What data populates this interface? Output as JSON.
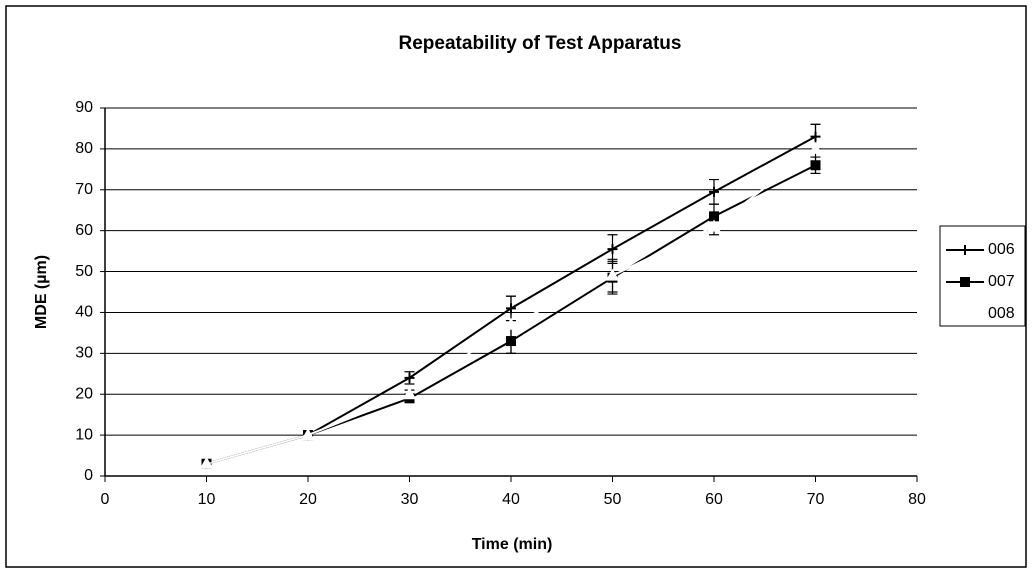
{
  "chart_data": {
    "type": "line",
    "title": "Repeatability of Test Apparatus",
    "x_label": "Time (min)",
    "y_label": "MDE (µm)",
    "x": [
      10,
      20,
      30,
      40,
      50,
      60,
      70
    ],
    "series": [
      {
        "name": "006",
        "color": "#000000",
        "marker": "plus",
        "values": [
          3,
          10,
          24,
          41,
          55.5,
          69.5,
          83
        ],
        "errors": [
          0.5,
          1,
          1.5,
          3,
          3.5,
          3,
          3
        ]
      },
      {
        "name": "007",
        "color": "#000000",
        "marker": "square",
        "values": [
          3,
          10,
          19,
          33,
          48.5,
          63.5,
          76
        ],
        "errors": [
          0.5,
          1,
          1,
          3,
          4,
          3,
          2
        ]
      },
      {
        "name": "008",
        "color": "#ffffff",
        "marker": "triangle",
        "values": [
          3,
          10,
          20,
          37,
          49,
          61,
          80
        ],
        "errors": [
          0.5,
          1,
          1,
          7,
          4,
          2,
          6
        ]
      }
    ],
    "xlim": [
      0,
      80
    ],
    "xticks": [
      0,
      10,
      20,
      30,
      40,
      50,
      60,
      70,
      80
    ],
    "ylim": [
      0,
      90
    ],
    "yticks": [
      0,
      10,
      20,
      30,
      40,
      50,
      60,
      70,
      80,
      90
    ],
    "grid": true,
    "legend": "right"
  }
}
